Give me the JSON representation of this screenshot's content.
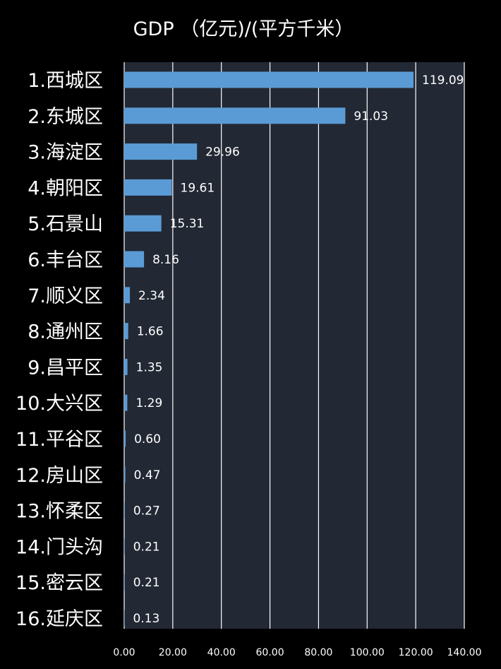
{
  "chart_data": {
    "type": "bar",
    "orientation": "horizontal",
    "title": "GDP （亿元)/(平方千米）",
    "categories": [
      "1.西城区",
      "2.东城区",
      "3.海淀区",
      "4.朝阳区",
      "5.石景山",
      "6.丰台区",
      "7.顺义区",
      "8.通州区",
      "9.昌平区",
      "10.大兴区",
      "11.平谷区",
      "12.房山区",
      "13.怀柔区",
      "14.门头沟",
      "15.密云区",
      "16.延庆区"
    ],
    "values": [
      119.09,
      91.03,
      29.96,
      19.61,
      15.31,
      8.16,
      2.34,
      1.66,
      1.35,
      1.29,
      0.6,
      0.47,
      0.27,
      0.21,
      0.21,
      0.13
    ],
    "value_labels": [
      "119.09",
      "91.03",
      "29.96",
      "19.61",
      "15.31",
      "8.16",
      "2.34",
      "1.66",
      "1.35",
      "1.29",
      "0.60",
      "0.47",
      "0.27",
      "0.21",
      "0.21",
      "0.13"
    ],
    "xlim": [
      0,
      140
    ],
    "x_ticks": [
      0,
      20,
      40,
      60,
      80,
      100,
      120,
      140
    ],
    "x_tick_labels": [
      "0.00",
      "20.00",
      "40.00",
      "60.00",
      "80.00",
      "100.00",
      "120.00",
      "140.00"
    ],
    "xlabel": "",
    "ylabel": "",
    "grid": true,
    "legend": "none",
    "colors": {
      "background": "#000000",
      "plot_background": "#222834",
      "bar": "#5b9bd5",
      "grid": "#ffffff",
      "text": "#ffffff"
    }
  }
}
